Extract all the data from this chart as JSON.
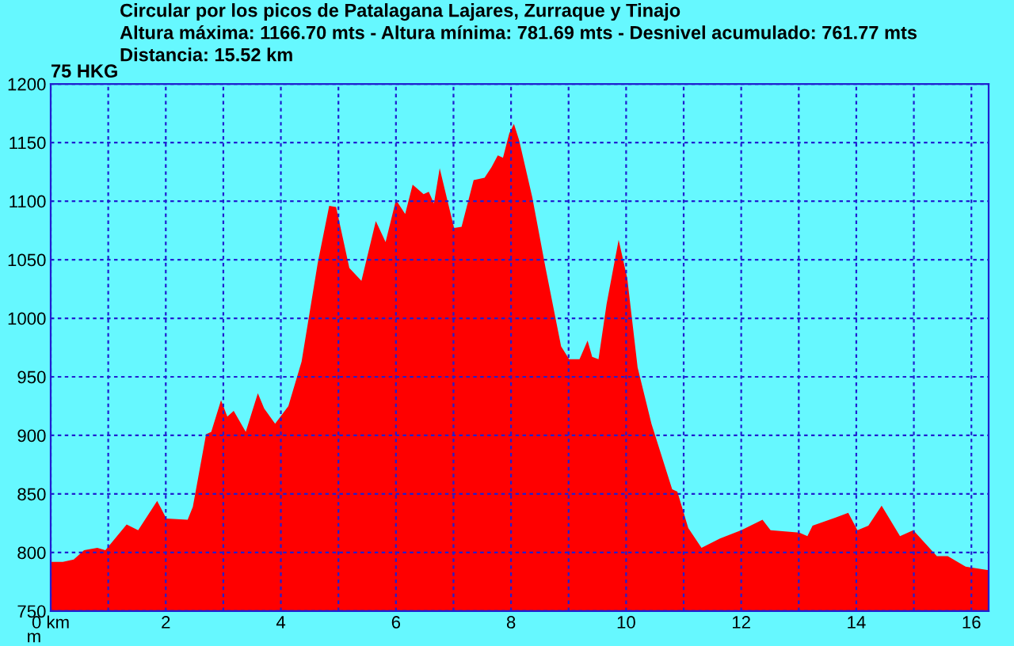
{
  "chart_data": {
    "type": "area",
    "title": "Circular por los picos de Patalagana Lajares, Zurraque y Tinajo",
    "subtitle": "Altura máxima: 1166.70 mts - Altura mínima: 781.69 mts - Desnivel acumulado: 761.77 mts\nDistancia: 15.52 km",
    "annotations": [
      "75 HKG"
    ],
    "ylabel": "m",
    "x": [
      0,
      0.21,
      0.4,
      0.58,
      0.81,
      0.95,
      1.32,
      1.52,
      1.85,
      2.01,
      2.38,
      2.47,
      2.7,
      2.79,
      2.96,
      3.07,
      3.18,
      3.39,
      3.6,
      3.71,
      3.9,
      4.13,
      4.36,
      4.64,
      4.84,
      4.96,
      5.19,
      5.4,
      5.65,
      5.82,
      6.0,
      6.16,
      6.29,
      6.48,
      6.57,
      6.66,
      6.76,
      7.01,
      7.14,
      7.35,
      7.54,
      7.66,
      7.77,
      7.86,
      7.97,
      8.05,
      8.14,
      8.37,
      8.6,
      8.87,
      9.01,
      9.19,
      9.33,
      9.41,
      9.52,
      9.66,
      9.87,
      10.02,
      10.2,
      10.44,
      10.8,
      10.89,
      11.08,
      11.31,
      11.63,
      12.0,
      12.37,
      12.51,
      13.01,
      13.15,
      13.24,
      13.65,
      13.86,
      14.02,
      14.21,
      14.44,
      14.76,
      14.99,
      15.4,
      15.59,
      15.9,
      16.3
    ],
    "series": [
      {
        "color": "#ff0000",
        "values": [
          792,
          792,
          794,
          802,
          804,
          802,
          824,
          819,
          844,
          829,
          828,
          839,
          901,
          903,
          930,
          916,
          921,
          903,
          936,
          923,
          910,
          925,
          963,
          1047,
          1096,
          1095,
          1043,
          1032,
          1083,
          1065,
          1101,
          1089,
          1114,
          1106,
          1108,
          1098,
          1128,
          1077,
          1078,
          1118,
          1120,
          1129,
          1139,
          1137,
          1158,
          1166,
          1152,
          1103,
          1043,
          976,
          965,
          965,
          981,
          967,
          965,
          1012,
          1067,
          1034,
          958,
          910,
          854,
          852,
          821,
          804,
          812,
          819,
          828,
          819,
          817,
          814,
          823,
          830,
          834,
          819,
          823,
          840,
          814,
          819,
          797,
          797,
          788,
          785
        ]
      }
    ],
    "xlim": [
      0,
      16.3
    ],
    "ylim": [
      750,
      1200
    ],
    "xticks": [
      {
        "value": 0,
        "label": "0 km"
      },
      {
        "value": 1,
        "label": null
      },
      2,
      {
        "value": 3,
        "label": null
      },
      4,
      {
        "value": 5,
        "label": null
      },
      6,
      {
        "value": 7,
        "label": null
      },
      8,
      {
        "value": 9,
        "label": null
      },
      10,
      {
        "value": 11,
        "label": null
      },
      12,
      {
        "value": 13,
        "label": null
      },
      14,
      {
        "value": 15,
        "label": null
      },
      16
    ],
    "yticks": [
      750,
      800,
      850,
      900,
      950,
      1000,
      1050,
      1100,
      1150,
      1200
    ],
    "grid": true,
    "legend": false
  }
}
